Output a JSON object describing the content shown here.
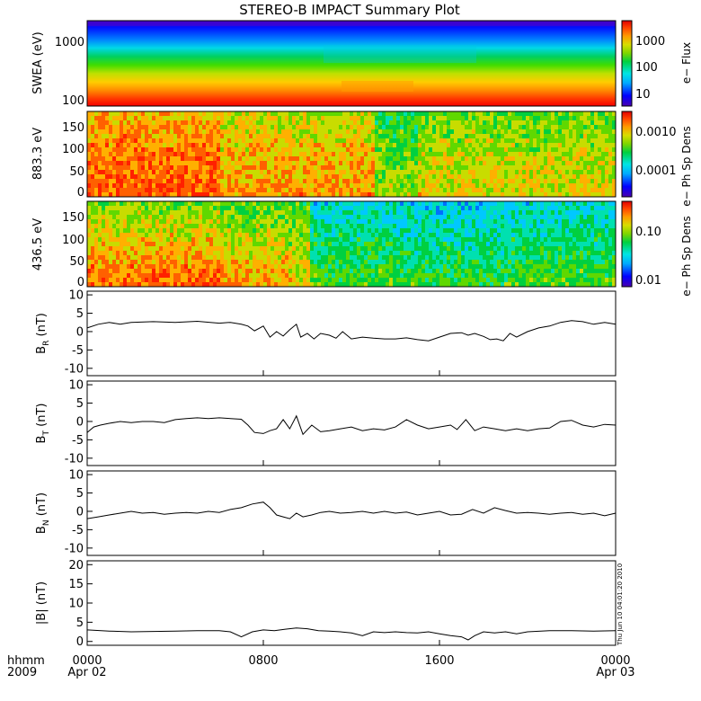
{
  "chart_data": {
    "type": "multi-panel timeseries",
    "title": "STEREO-B IMPACT Summary Plot",
    "xlim_hours": [
      0,
      24
    ],
    "x_ticks": [
      "0000",
      "0800",
      "1600",
      "0000"
    ],
    "x_dates": [
      "Apr 02",
      "",
      "",
      "Apr 03"
    ],
    "x_axis_label": "hhmm",
    "year_label": "2009",
    "timestamp": "Thu Jun 10 04:01:20 2010",
    "spectrograms": [
      {
        "id": "swea",
        "ylabel": "SWEA (eV)",
        "ylog": true,
        "ylim": [
          90,
          2000
        ],
        "yticks": [
          "1000",
          "100"
        ],
        "cbar_label": "e− Flux",
        "cbar_log": true,
        "cbar_range": [
          3,
          3000
        ],
        "cbar_ticks": [
          "1000",
          "100",
          "10"
        ]
      },
      {
        "id": "pad883",
        "ylabel": "883.3 eV",
        "ylim": [
          -10,
          180
        ],
        "yticks": [
          "150",
          "100",
          "50",
          "0"
        ],
        "cbar_label": "e− Ph Sp Dens",
        "cbar_log": true,
        "cbar_range": [
          1e-05,
          0.002
        ],
        "cbar_ticks": [
          "0.0010",
          "0.0001"
        ]
      },
      {
        "id": "pad436",
        "ylabel": "436.5 eV",
        "ylim": [
          -10,
          180
        ],
        "yticks": [
          "150",
          "100",
          "50",
          "0"
        ],
        "cbar_label": "e− Ph Sp Dens",
        "cbar_log": true,
        "cbar_range": [
          0.008,
          0.1
        ],
        "cbar_ticks": [
          "0.10",
          "0.01"
        ]
      }
    ],
    "series": [
      {
        "id": "br",
        "main": "B",
        "sub": "R",
        "unit": "(nT)",
        "ylim": [
          -12,
          11
        ],
        "yticks": [
          "10",
          "5",
          "0",
          "-5",
          "-10"
        ],
        "t": [
          0,
          0.5,
          1,
          1.5,
          2,
          3,
          4,
          5,
          6,
          6.5,
          7,
          7.3,
          7.6,
          8,
          8.3,
          8.6,
          8.9,
          9.2,
          9.5,
          9.7,
          10,
          10.3,
          10.6,
          11,
          11.3,
          11.6,
          12,
          12.5,
          13,
          13.5,
          14,
          14.5,
          15,
          15.5,
          16,
          16.5,
          17,
          17.3,
          17.6,
          18,
          18.3,
          18.6,
          18.9,
          19.2,
          19.5,
          20,
          20.5,
          21,
          21.5,
          22,
          22.5,
          23,
          23.5,
          24
        ],
        "values": [
          1,
          2,
          2.5,
          2,
          2.5,
          2.7,
          2.5,
          2.8,
          2.3,
          2.5,
          2,
          1.5,
          0.2,
          1.5,
          -1.5,
          0,
          -1.2,
          0.5,
          2,
          -1.5,
          -0.5,
          -2,
          -0.5,
          -1,
          -1.8,
          0,
          -2,
          -1.5,
          -1.8,
          -2,
          -2,
          -1.7,
          -2.2,
          -2.5,
          -1.5,
          -0.5,
          -0.3,
          -1,
          -0.5,
          -1.3,
          -2.2,
          -2,
          -2.5,
          -0.5,
          -1.5,
          0,
          1,
          1.5,
          2.5,
          3,
          2.7,
          2,
          2.5,
          2
        ]
      },
      {
        "id": "bt",
        "main": "B",
        "sub": "T",
        "unit": "(nT)",
        "ylim": [
          -12,
          11
        ],
        "yticks": [
          "10",
          "5",
          "0",
          "-5",
          "-10"
        ],
        "t": [
          0,
          0.3,
          0.6,
          1,
          1.5,
          2,
          2.5,
          3,
          3.5,
          4,
          4.5,
          5,
          5.5,
          6,
          6.5,
          7,
          7.3,
          7.6,
          8,
          8.3,
          8.6,
          8.9,
          9.2,
          9.5,
          9.8,
          10.2,
          10.6,
          11,
          11.5,
          12,
          12.5,
          13,
          13.5,
          14,
          14.5,
          15,
          15.5,
          16,
          16.5,
          16.8,
          17.2,
          17.6,
          18,
          18.5,
          19,
          19.5,
          20,
          20.5,
          21,
          21.5,
          22,
          22.5,
          23,
          23.5,
          24
        ],
        "values": [
          -3,
          -1.5,
          -1,
          -0.5,
          0,
          -0.3,
          0,
          0,
          -0.3,
          0.5,
          0.8,
          1,
          0.8,
          1,
          0.8,
          0.6,
          -1,
          -3,
          -3.3,
          -2.5,
          -2,
          0.5,
          -2,
          1.5,
          -3.5,
          -1,
          -2.8,
          -2.5,
          -2,
          -1.5,
          -2.5,
          -2,
          -2.3,
          -1.5,
          0.5,
          -1,
          -2,
          -1.5,
          -1,
          -2.2,
          0.5,
          -2.5,
          -1.5,
          -2,
          -2.5,
          -2,
          -2.5,
          -2,
          -1.8,
          0,
          0.3,
          -1,
          -1.5,
          -0.8,
          -1
        ]
      },
      {
        "id": "bn",
        "main": "B",
        "sub": "N",
        "unit": "(nT)",
        "ylim": [
          -12,
          11
        ],
        "yticks": [
          "10",
          "5",
          "0",
          "-5",
          "-10"
        ],
        "t": [
          0,
          0.5,
          1,
          1.5,
          2,
          2.5,
          3,
          3.5,
          4,
          4.5,
          5,
          5.5,
          6,
          6.5,
          7,
          7.5,
          8,
          8.3,
          8.6,
          8.9,
          9.2,
          9.5,
          9.8,
          10.2,
          10.6,
          11,
          11.5,
          12,
          12.5,
          13,
          13.5,
          14,
          14.5,
          15,
          15.5,
          16,
          16.5,
          17,
          17.5,
          18,
          18.5,
          19,
          19.5,
          20,
          20.5,
          21,
          21.5,
          22,
          22.5,
          23,
          23.5,
          24
        ],
        "values": [
          -2,
          -1.5,
          -1,
          -0.5,
          0,
          -0.5,
          -0.3,
          -0.8,
          -0.5,
          -0.3,
          -0.5,
          0,
          -0.3,
          0.5,
          1,
          2,
          2.5,
          1,
          -1,
          -1.5,
          -2,
          -0.5,
          -1.5,
          -1,
          -0.3,
          0,
          -0.5,
          -0.3,
          0,
          -0.5,
          0,
          -0.5,
          -0.2,
          -1,
          -0.5,
          0,
          -1,
          -0.8,
          0.5,
          -0.5,
          1,
          0.2,
          -0.5,
          -0.3,
          -0.5,
          -0.8,
          -0.5,
          -0.3,
          -0.8,
          -0.5,
          -1.2,
          -0.5
        ]
      },
      {
        "id": "bmag",
        "main": "|B|",
        "sub": "",
        "unit": "(nT)",
        "ylim": [
          -1,
          21
        ],
        "yticks": [
          "20",
          "15",
          "10",
          "5",
          "0"
        ],
        "t": [
          0,
          1,
          2,
          3,
          4,
          5,
          6,
          6.5,
          7,
          7.5,
          8,
          8.5,
          9,
          9.5,
          10,
          10.5,
          11,
          11.5,
          12,
          12.5,
          13,
          13.5,
          14,
          14.5,
          15,
          15.5,
          16,
          16.5,
          17,
          17.3,
          17.6,
          18,
          18.5,
          19,
          19.5,
          20,
          21,
          22,
          23,
          24
        ],
        "values": [
          3,
          2.7,
          2.5,
          2.6,
          2.7,
          2.8,
          2.8,
          2.5,
          1.2,
          2.5,
          3,
          2.8,
          3.2,
          3.5,
          3.3,
          2.8,
          2.7,
          2.5,
          2.2,
          1.5,
          2.5,
          2.3,
          2.5,
          2.3,
          2.2,
          2.5,
          2,
          1.5,
          1.2,
          0.4,
          1.5,
          2.5,
          2.2,
          2.5,
          2,
          2.5,
          2.8,
          2.8,
          2.7,
          2.8
        ]
      }
    ]
  }
}
